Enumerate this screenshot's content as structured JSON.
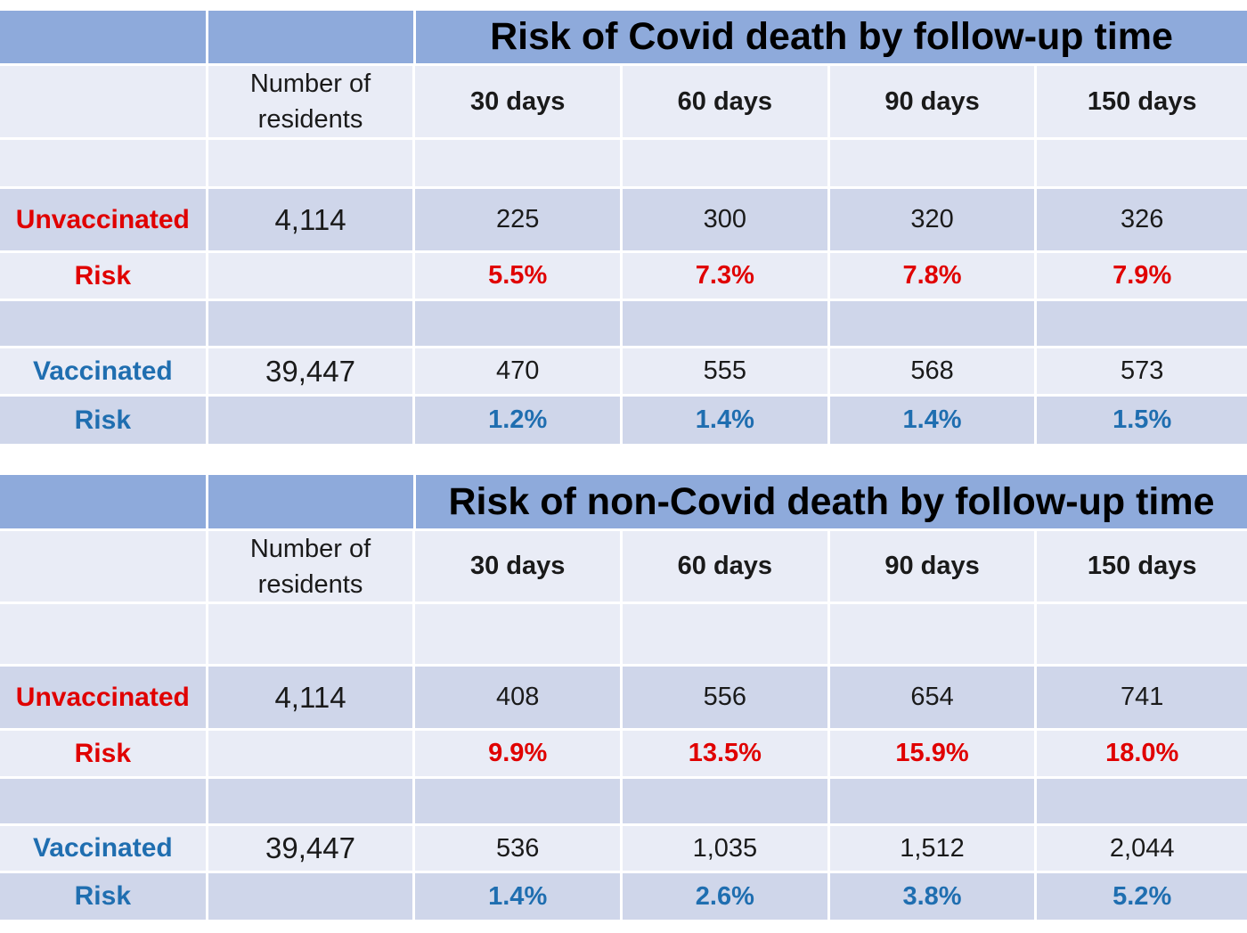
{
  "colors": {
    "header": "#8eaadb",
    "light_row": "#e9ecf6",
    "mid_row": "#cfd6ea",
    "unvaccinated": "#e00000",
    "vaccinated": "#1f6eb0"
  },
  "tables": [
    {
      "title": "Risk of Covid death by follow-up time",
      "residents_header": "Number of residents",
      "columns": [
        "30 days",
        "60 days",
        "90 days",
        "150 days"
      ],
      "unvaccinated": {
        "label": "Unvaccinated",
        "residents": "4,114",
        "deaths": [
          "225",
          "300",
          "320",
          "326"
        ],
        "risk_label": "Risk",
        "risk": [
          "5.5%",
          "7.3%",
          "7.8%",
          "7.9%"
        ]
      },
      "vaccinated": {
        "label": "Vaccinated",
        "residents": "39,447",
        "deaths": [
          "470",
          "555",
          "568",
          "573"
        ],
        "risk_label": "Risk",
        "risk": [
          "1.2%",
          "1.4%",
          "1.4%",
          "1.5%"
        ]
      }
    },
    {
      "title": "Risk of non-Covid death by follow-up time",
      "residents_header": "Number of residents",
      "columns": [
        "30 days",
        "60 days",
        "90 days",
        "150 days"
      ],
      "unvaccinated": {
        "label": "Unvaccinated",
        "residents": "4,114",
        "deaths": [
          "408",
          "556",
          "654",
          "741"
        ],
        "risk_label": "Risk",
        "risk": [
          "9.9%",
          "13.5%",
          "15.9%",
          "18.0%"
        ]
      },
      "vaccinated": {
        "label": "Vaccinated",
        "residents": "39,447",
        "deaths": [
          "536",
          "1,035",
          "1,512",
          "2,044"
        ],
        "risk_label": "Risk",
        "risk": [
          "1.4%",
          "2.6%",
          "3.8%",
          "5.2%"
        ]
      }
    }
  ],
  "chart_data": [
    {
      "type": "table",
      "title": "Risk of Covid death by follow-up time",
      "categories": [
        "30 days",
        "60 days",
        "90 days",
        "150 days"
      ],
      "series": [
        {
          "name": "Unvaccinated",
          "residents": 4114,
          "values": [
            225,
            300,
            320,
            326
          ],
          "risk_percent": [
            5.5,
            7.3,
            7.8,
            7.9
          ]
        },
        {
          "name": "Vaccinated",
          "residents": 39447,
          "values": [
            470,
            555,
            568,
            573
          ],
          "risk_percent": [
            1.2,
            1.4,
            1.4,
            1.5
          ]
        }
      ]
    },
    {
      "type": "table",
      "title": "Risk of non-Covid death by follow-up time",
      "categories": [
        "30 days",
        "60 days",
        "90 days",
        "150 days"
      ],
      "series": [
        {
          "name": "Unvaccinated",
          "residents": 4114,
          "values": [
            408,
            556,
            654,
            741
          ],
          "risk_percent": [
            9.9,
            13.5,
            15.9,
            18.0
          ]
        },
        {
          "name": "Vaccinated",
          "residents": 39447,
          "values": [
            536,
            1035,
            1512,
            2044
          ],
          "risk_percent": [
            1.4,
            2.6,
            3.8,
            5.2
          ]
        }
      ]
    }
  ]
}
